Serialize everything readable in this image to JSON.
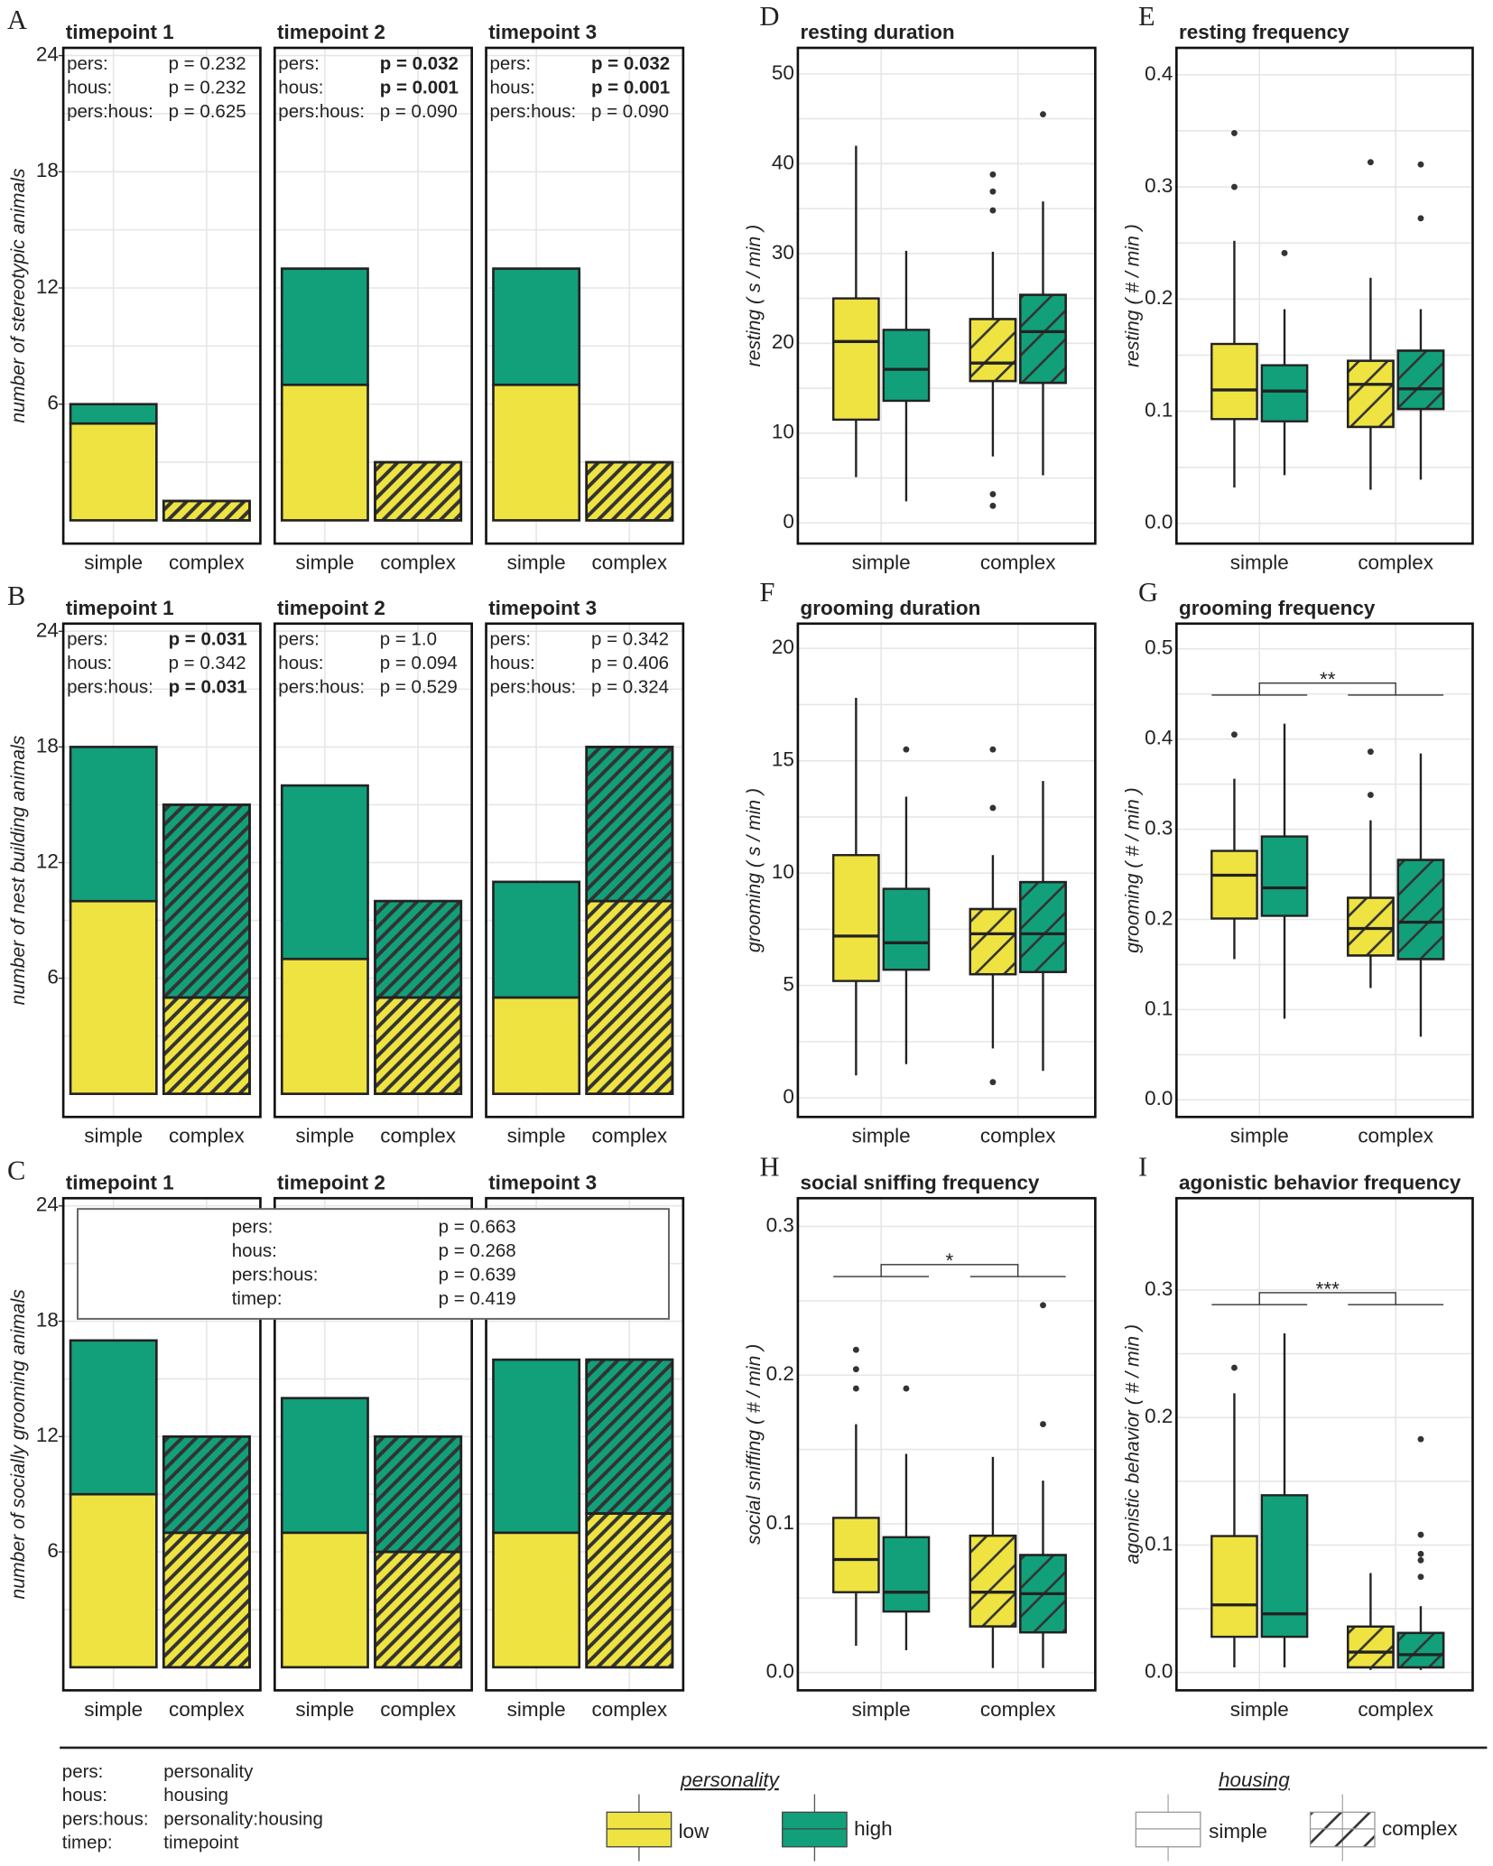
{
  "chart_data": [
    {
      "type": "stacked-bar",
      "panel": "A",
      "ylabel": "number of stereotypic animals",
      "ylim": [
        -1.2,
        24.4
      ],
      "yticks": [
        6,
        12,
        18,
        24
      ],
      "grid": true,
      "facets": [
        {
          "title": "timepoint 1",
          "categories": [
            "simple",
            "complex"
          ],
          "stats": [
            {
              "term": "pers:",
              "p": "p = 0.232"
            },
            {
              "term": "hous:",
              "p": "p = 0.232"
            },
            {
              "term": "pers:hous:",
              "p": "p = 0.625"
            }
          ],
          "series": [
            {
              "name": "low",
              "color": "#efe342",
              "values": [
                5,
                1
              ]
            },
            {
              "name": "high",
              "color": "#12a07a",
              "values": [
                1,
                0
              ]
            }
          ]
        },
        {
          "title": "timepoint 2",
          "categories": [
            "simple",
            "complex"
          ],
          "stats": [
            {
              "term": "pers:",
              "p": "p = 0.032",
              "bold": true
            },
            {
              "term": "hous:",
              "p": "p = 0.001",
              "bold": true
            },
            {
              "term": "pers:hous:",
              "p": "p = 0.090"
            }
          ],
          "series": [
            {
              "name": "low",
              "color": "#efe342",
              "values": [
                7,
                3
              ]
            },
            {
              "name": "high",
              "color": "#12a07a",
              "values": [
                6,
                0
              ]
            }
          ]
        },
        {
          "title": "timepoint 3",
          "categories": [
            "simple",
            "complex"
          ],
          "stats": [
            {
              "term": "pers:",
              "p": "p = 0.032",
              "bold": true
            },
            {
              "term": "hous:",
              "p": "p = 0.001",
              "bold": true
            },
            {
              "term": "pers:hous:",
              "p": "p = 0.090"
            }
          ],
          "series": [
            {
              "name": "low",
              "color": "#efe342",
              "values": [
                7,
                3
              ]
            },
            {
              "name": "high",
              "color": "#12a07a",
              "values": [
                6,
                0
              ]
            }
          ]
        }
      ]
    },
    {
      "type": "stacked-bar",
      "panel": "B",
      "ylabel": "number of nest building animals",
      "ylim": [
        -1.2,
        24.4
      ],
      "yticks": [
        6,
        12,
        18,
        24
      ],
      "grid": true,
      "facets": [
        {
          "title": "timepoint 1",
          "categories": [
            "simple",
            "complex"
          ],
          "stats": [
            {
              "term": "pers:",
              "p": "p = 0.031",
              "bold": true
            },
            {
              "term": "hous:",
              "p": "p = 0.342"
            },
            {
              "term": "pers:hous:",
              "p": "p = 0.031",
              "bold": true
            }
          ],
          "series": [
            {
              "name": "low",
              "color": "#efe342",
              "values": [
                10,
                5
              ]
            },
            {
              "name": "high",
              "color": "#12a07a",
              "values": [
                8,
                10
              ]
            }
          ]
        },
        {
          "title": "timepoint 2",
          "categories": [
            "simple",
            "complex"
          ],
          "stats": [
            {
              "term": "pers:",
              "p": "p = 1.0"
            },
            {
              "term": "hous:",
              "p": "p = 0.094"
            },
            {
              "term": "pers:hous:",
              "p": "p = 0.529"
            }
          ],
          "series": [
            {
              "name": "low",
              "color": "#efe342",
              "values": [
                7,
                5
              ]
            },
            {
              "name": "high",
              "color": "#12a07a",
              "values": [
                9,
                5
              ]
            }
          ]
        },
        {
          "title": "timepoint 3",
          "categories": [
            "simple",
            "complex"
          ],
          "stats": [
            {
              "term": "pers:",
              "p": "p = 0.342"
            },
            {
              "term": "hous:",
              "p": "p = 0.406"
            },
            {
              "term": "pers:hous:",
              "p": "p = 0.324"
            }
          ],
          "series": [
            {
              "name": "low",
              "color": "#efe342",
              "values": [
                5,
                10
              ]
            },
            {
              "name": "high",
              "color": "#12a07a",
              "values": [
                6,
                8
              ]
            }
          ]
        }
      ]
    },
    {
      "type": "stacked-bar",
      "panel": "C",
      "ylabel": "number of socially grooming animals",
      "ylim": [
        -1.2,
        24.4
      ],
      "yticks": [
        6,
        12,
        18,
        24
      ],
      "grid": true,
      "stats": [
        {
          "term": "pers:",
          "p": "p = 0.663"
        },
        {
          "term": "hous:",
          "p": "p = 0.268"
        },
        {
          "term": "pers:hous:",
          "p": "p = 0.639"
        },
        {
          "term": "timep:",
          "p": "p = 0.419"
        }
      ],
      "facets": [
        {
          "title": "timepoint 1",
          "categories": [
            "simple",
            "complex"
          ],
          "series": [
            {
              "name": "low",
              "color": "#efe342",
              "values": [
                9,
                7
              ]
            },
            {
              "name": "high",
              "color": "#12a07a",
              "values": [
                8,
                5
              ]
            }
          ]
        },
        {
          "title": "timepoint 2",
          "categories": [
            "simple",
            "complex"
          ],
          "series": [
            {
              "name": "low",
              "color": "#efe342",
              "values": [
                7,
                6
              ]
            },
            {
              "name": "high",
              "color": "#12a07a",
              "values": [
                7,
                6
              ]
            }
          ]
        },
        {
          "title": "timepoint 3",
          "categories": [
            "simple",
            "complex"
          ],
          "series": [
            {
              "name": "low",
              "color": "#efe342",
              "values": [
                7,
                8
              ]
            },
            {
              "name": "high",
              "color": "#12a07a",
              "values": [
                9,
                8
              ]
            }
          ]
        }
      ]
    },
    {
      "type": "box",
      "panel": "D",
      "title": "resting duration",
      "ylabel": "resting ( s / min )",
      "ylim": [
        -2.3,
        52.9
      ],
      "yticks": [
        0,
        10,
        20,
        30,
        40,
        50
      ],
      "grid": true,
      "categories": [
        "simple",
        "complex"
      ],
      "series": [
        {
          "name": "low",
          "color": "#efe342",
          "boxes": [
            {
              "min": 5.1,
              "q1": 11.5,
              "median": 20.2,
              "q3": 25,
              "max": 42,
              "outliers": []
            },
            {
              "min": 7.4,
              "q1": 15.8,
              "median": 17.8,
              "q3": 22.7,
              "max": 30.2,
              "outliers": [
                38.8,
                36.9,
                34.8,
                3.2,
                1.9
              ]
            }
          ]
        },
        {
          "name": "high",
          "color": "#12a07a",
          "boxes": [
            {
              "min": 2.4,
              "q1": 13.6,
              "median": 17.1,
              "q3": 21.5,
              "max": 30.3,
              "outliers": []
            },
            {
              "min": 5.3,
              "q1": 15.6,
              "median": 21.3,
              "q3": 25.4,
              "max": 35.8,
              "outliers": [
                45.5
              ]
            }
          ]
        }
      ]
    },
    {
      "type": "box",
      "panel": "E",
      "title": "resting frequency",
      "ylabel": "resting ( # / min )",
      "ylim": [
        -0.018,
        0.424
      ],
      "yticks": [
        {
          "value": 0,
          "label": "0.0"
        },
        0.1,
        0.2,
        0.3,
        0.4
      ],
      "grid": true,
      "categories": [
        "simple",
        "complex"
      ],
      "series": [
        {
          "name": "low",
          "color": "#efe342",
          "boxes": [
            {
              "min": 0.032,
              "q1": 0.093,
              "median": 0.119,
              "q3": 0.16,
              "max": 0.252,
              "outliers": [
                0.348,
                0.3
              ]
            },
            {
              "min": 0.03,
              "q1": 0.086,
              "median": 0.124,
              "q3": 0.145,
              "max": 0.219,
              "outliers": [
                0.322
              ]
            }
          ]
        },
        {
          "name": "high",
          "color": "#12a07a",
          "boxes": [
            {
              "min": 0.043,
              "q1": 0.091,
              "median": 0.118,
              "q3": 0.141,
              "max": 0.191,
              "outliers": [
                0.241
              ]
            },
            {
              "min": 0.039,
              "q1": 0.102,
              "median": 0.12,
              "q3": 0.154,
              "max": 0.191,
              "outliers": [
                0.32,
                0.272
              ]
            }
          ]
        }
      ]
    },
    {
      "type": "box",
      "panel": "F",
      "title": "grooming duration",
      "ylabel": "grooming ( s / min )",
      "ylim": [
        -0.85,
        21.1
      ],
      "yticks": [
        0,
        5,
        10,
        15,
        20
      ],
      "grid": true,
      "categories": [
        "simple",
        "complex"
      ],
      "series": [
        {
          "name": "low",
          "color": "#efe342",
          "boxes": [
            {
              "min": 1.0,
              "q1": 5.2,
              "median": 7.2,
              "q3": 10.8,
              "max": 17.8,
              "outliers": []
            },
            {
              "min": 2.2,
              "q1": 5.5,
              "median": 7.3,
              "q3": 8.4,
              "max": 10.8,
              "outliers": [
                15.5,
                12.9,
                0.7
              ]
            }
          ]
        },
        {
          "name": "high",
          "color": "#12a07a",
          "boxes": [
            {
              "min": 1.5,
              "q1": 5.7,
              "median": 6.9,
              "q3": 9.3,
              "max": 13.4,
              "outliers": [
                15.5
              ]
            },
            {
              "min": 1.2,
              "q1": 5.6,
              "median": 7.3,
              "q3": 9.6,
              "max": 14.1,
              "outliers": []
            }
          ]
        }
      ]
    },
    {
      "type": "box",
      "panel": "G",
      "title": "grooming frequency",
      "ylabel": "grooming ( # / min )",
      "ylim": [
        -0.019,
        0.528
      ],
      "yticks": [
        {
          "value": 0,
          "label": "0.0"
        },
        0.1,
        0.2,
        0.3,
        0.4,
        0.5
      ],
      "grid": true,
      "categories": [
        "simple",
        "complex"
      ],
      "significance": "**",
      "series": [
        {
          "name": "low",
          "color": "#efe342",
          "boxes": [
            {
              "min": 0.156,
              "q1": 0.201,
              "median": 0.249,
              "q3": 0.276,
              "max": 0.356,
              "outliers": [
                0.405
              ]
            },
            {
              "min": 0.124,
              "q1": 0.16,
              "median": 0.19,
              "q3": 0.224,
              "max": 0.31,
              "outliers": [
                0.386,
                0.338
              ]
            }
          ]
        },
        {
          "name": "high",
          "color": "#12a07a",
          "boxes": [
            {
              "min": 0.09,
              "q1": 0.204,
              "median": 0.235,
              "q3": 0.292,
              "max": 0.417,
              "outliers": []
            },
            {
              "min": 0.07,
              "q1": 0.156,
              "median": 0.197,
              "q3": 0.266,
              "max": 0.384,
              "outliers": []
            }
          ]
        }
      ]
    },
    {
      "type": "box",
      "panel": "H",
      "title": "social  sniffing  frequency",
      "ylabel": "social sniffing  ( # / min )",
      "ylim": [
        -0.012,
        0.319
      ],
      "yticks": [
        {
          "value": 0,
          "label": "0.0"
        },
        0.1,
        0.2,
        0.3
      ],
      "grid": true,
      "categories": [
        "simple",
        "complex"
      ],
      "significance": "*",
      "series": [
        {
          "name": "low",
          "color": "#efe342",
          "boxes": [
            {
              "min": 0.018,
              "q1": 0.054,
              "median": 0.076,
              "q3": 0.104,
              "max": 0.167,
              "outliers": [
                0.217,
                0.204,
                0.191
              ]
            },
            {
              "min": 0.003,
              "q1": 0.031,
              "median": 0.054,
              "q3": 0.092,
              "max": 0.145,
              "outliers": []
            }
          ]
        },
        {
          "name": "high",
          "color": "#12a07a",
          "boxes": [
            {
              "min": 0.015,
              "q1": 0.041,
              "median": 0.054,
              "q3": 0.091,
              "max": 0.147,
              "outliers": [
                0.191
              ]
            },
            {
              "min": 0.003,
              "q1": 0.027,
              "median": 0.053,
              "q3": 0.079,
              "max": 0.129,
              "outliers": [
                0.247,
                0.167
              ]
            }
          ]
        }
      ]
    },
    {
      "type": "box",
      "panel": "I",
      "title": "agonistic  behavior  frequency",
      "ylabel": "agonistic behavior  ( # / min )",
      "ylim": [
        -0.014,
        0.372
      ],
      "yticks": [
        {
          "value": 0,
          "label": "0.0"
        },
        0.1,
        0.2,
        0.3
      ],
      "grid": true,
      "categories": [
        "simple",
        "complex"
      ],
      "significance": "***",
      "series": [
        {
          "name": "low",
          "color": "#efe342",
          "boxes": [
            {
              "min": 0.004,
              "q1": 0.028,
              "median": 0.053,
              "q3": 0.107,
              "max": 0.219,
              "outliers": [
                0.239
              ]
            },
            {
              "min": 0.002,
              "q1": 0.004,
              "median": 0.016,
              "q3": 0.036,
              "max": 0.078,
              "outliers": []
            }
          ]
        },
        {
          "name": "high",
          "color": "#12a07a",
          "boxes": [
            {
              "min": 0.004,
              "q1": 0.028,
              "median": 0.046,
              "q3": 0.139,
              "max": 0.266,
              "outliers": []
            },
            {
              "min": 0.002,
              "q1": 0.004,
              "median": 0.014,
              "q3": 0.031,
              "max": 0.052,
              "outliers": [
                0.183,
                0.108,
                0.093,
                0.088,
                0.075
              ]
            }
          ]
        }
      ]
    }
  ],
  "legend": {
    "abbreviations": [
      {
        "term": "pers:",
        "meaning": "personality"
      },
      {
        "term": "hous:",
        "meaning": "housing"
      },
      {
        "term": "pers:hous:",
        "meaning": "personality:housing"
      },
      {
        "term": "timep:",
        "meaning": "timepoint"
      }
    ],
    "personality": "personality",
    "housing": "housing",
    "housing_items": [
      "simple",
      "complex"
    ]
  }
}
